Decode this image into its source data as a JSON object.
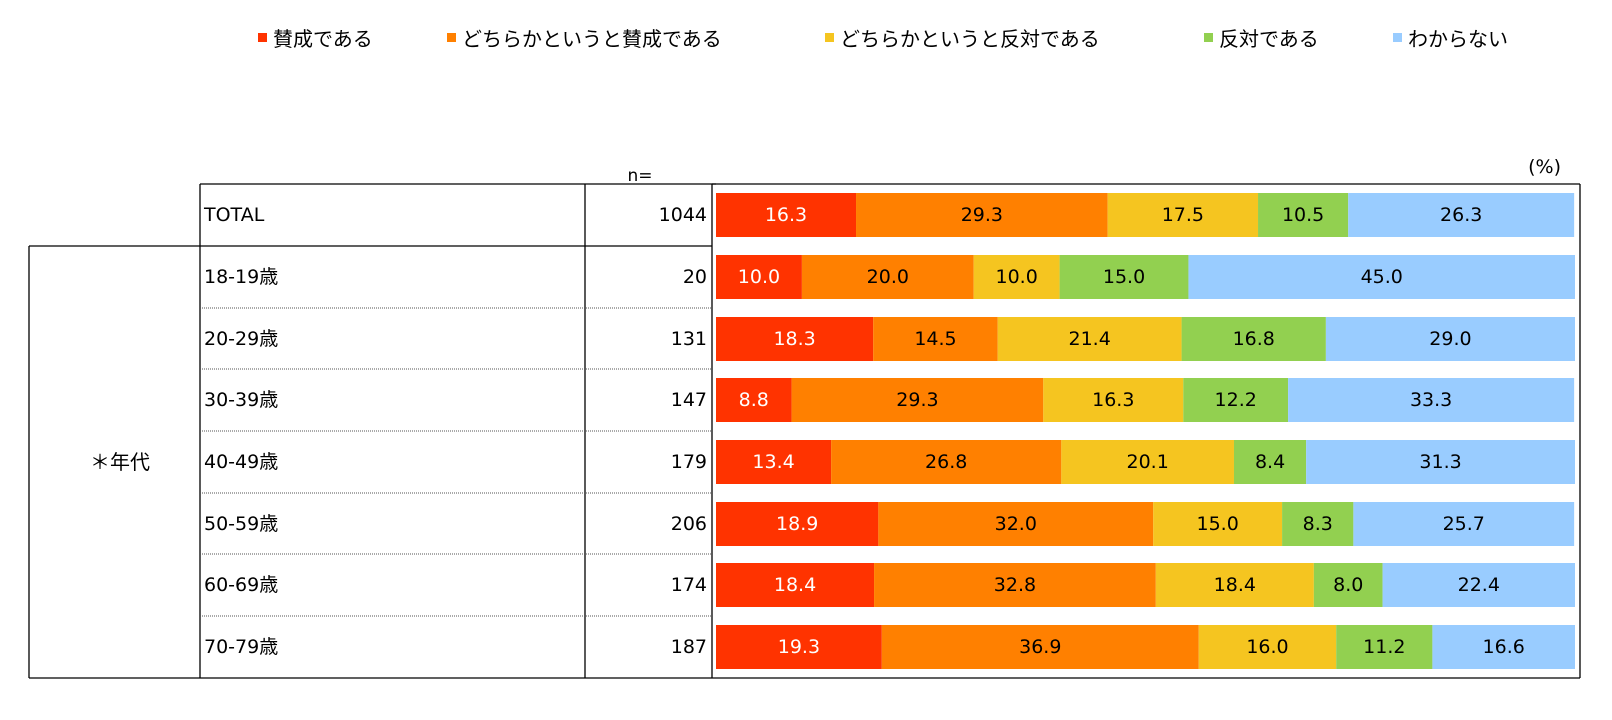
{
  "legend": {
    "items": [
      {
        "label": "賛成である",
        "color": "#ff3300"
      },
      {
        "label": "どちらかというと賛成である",
        "color": "#ff8000"
      },
      {
        "label": "どちらかというと反対である",
        "color": "#f5c520"
      },
      {
        "label": "反対である",
        "color": "#92d050"
      },
      {
        "label": "わからない",
        "color": "#99ccff"
      }
    ]
  },
  "header": {
    "n_label": "n=",
    "unit_label": "(%)"
  },
  "group": {
    "label": "＊年代"
  },
  "chart_data": {
    "type": "bar",
    "orientation": "horizontal",
    "stacked": true,
    "unit": "%",
    "xlim": [
      0,
      100
    ],
    "categories": [
      "TOTAL",
      "18-19歳",
      "20-29歳",
      "30-39歳",
      "40-49歳",
      "50-59歳",
      "60-69歳",
      "70-79歳"
    ],
    "n": [
      "1044",
      "20",
      "131",
      "147",
      "179",
      "206",
      "174",
      "187"
    ],
    "series": [
      {
        "name": "賛成である",
        "color": "#ff3300",
        "values": [
          16.3,
          10.0,
          18.3,
          8.8,
          13.4,
          18.9,
          18.4,
          19.3
        ]
      },
      {
        "name": "どちらかというと賛成である",
        "color": "#ff8000",
        "values": [
          29.3,
          20.0,
          14.5,
          29.3,
          26.8,
          32.0,
          32.8,
          36.9
        ]
      },
      {
        "name": "どちらかというと反対である",
        "color": "#f5c520",
        "values": [
          17.5,
          10.0,
          21.4,
          16.3,
          20.1,
          15.0,
          18.4,
          16.0
        ]
      },
      {
        "name": "反対である",
        "color": "#92d050",
        "values": [
          10.5,
          15.0,
          16.8,
          12.2,
          8.4,
          8.3,
          8.0,
          11.2
        ]
      },
      {
        "name": "わからない",
        "color": "#99ccff",
        "values": [
          26.3,
          45.0,
          29.0,
          33.3,
          31.3,
          25.7,
          22.4,
          16.6
        ]
      }
    ]
  }
}
